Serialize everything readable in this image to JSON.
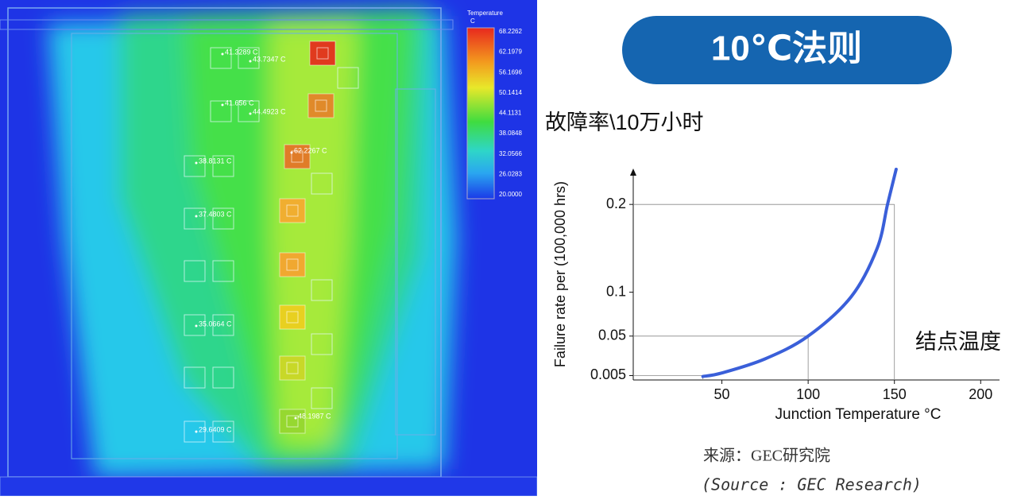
{
  "thermal_map": {
    "legend_title": "Temperature",
    "legend_unit": "C",
    "legend_labels": [
      "68.2262",
      "62.1979",
      "56.1696",
      "50.1414",
      "44.1131",
      "38.0848",
      "32.0566",
      "26.0283",
      "20.0000"
    ],
    "chip_labels": [
      "41.3289 C",
      "43.7347 C",
      "41.656 C",
      "44.4923 C",
      "38.8131 C",
      "62.2267 C",
      "37.4803 C",
      "35.0664 C",
      "48.1987 C",
      "29.6409 C"
    ]
  },
  "chart_data": {
    "type": "line",
    "title": "10℃法则",
    "subtitle": "故障率\\10万小时",
    "x_label": "Junction Temperature °C",
    "y_label": "Failure rate per (100,000 hrs)",
    "annotation": "结点温度",
    "source": "来源：GEC研究院",
    "source_en": "(Source : GEC Research)",
    "series": [
      {
        "color": "#3a5fd9",
        "x": [
          39,
          50,
          75,
          100,
          125,
          140,
          146,
          151
        ],
        "values": [
          0.004,
          0.008,
          0.024,
          0.05,
          0.095,
          0.15,
          0.2,
          0.24
        ]
      }
    ],
    "reference_points": [
      {
        "x": 39,
        "y": 0.005
      },
      {
        "x": 100,
        "y": 0.05
      },
      {
        "x": 150,
        "y": 0.2
      }
    ],
    "xlim": [
      0,
      210
    ],
    "ylim": [
      0,
      0.24
    ],
    "xticks": [
      50,
      100,
      150,
      200
    ],
    "yticks": [
      0.005,
      0.05,
      0.1,
      0.2
    ]
  }
}
